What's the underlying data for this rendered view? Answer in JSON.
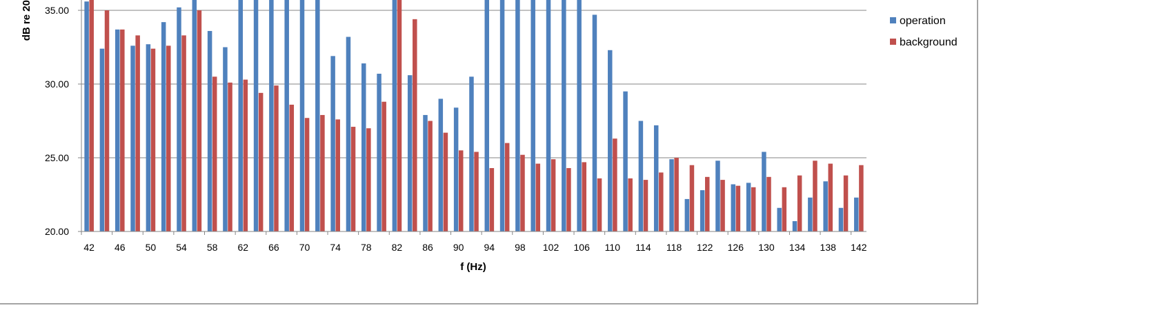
{
  "chart_data": {
    "type": "bar",
    "title": "",
    "xlabel": "f (Hz)",
    "ylabel": "dB re 20",
    "ylim": [
      20,
      35
    ],
    "y_ticks": [
      "20.00",
      "25.00",
      "30.00",
      "35.00"
    ],
    "grid": true,
    "legend_position": "right",
    "categories": [
      42,
      44,
      46,
      48,
      50,
      52,
      54,
      56,
      58,
      60,
      62,
      64,
      66,
      68,
      70,
      72,
      74,
      76,
      78,
      80,
      82,
      84,
      86,
      88,
      90,
      92,
      94,
      96,
      98,
      100,
      102,
      104,
      106,
      108,
      110,
      112,
      114,
      116,
      118,
      120,
      122,
      124,
      126,
      128,
      130,
      132,
      134,
      136,
      138,
      140,
      142
    ],
    "tick_labels": [
      "42",
      "46",
      "50",
      "54",
      "58",
      "62",
      "66",
      "70",
      "74",
      "78",
      "82",
      "86",
      "90",
      "94",
      "98",
      "102",
      "106",
      "110",
      "114",
      "118",
      "122",
      "126",
      "130",
      "134",
      "138",
      "142"
    ],
    "series": [
      {
        "name": "operation",
        "color": "#4F81BD",
        "values": [
          35.6,
          32.4,
          33.7,
          32.6,
          32.7,
          34.2,
          35.2,
          36.5,
          33.6,
          32.5,
          36.5,
          36.5,
          36.5,
          36.5,
          36.5,
          36.5,
          31.9,
          33.2,
          31.4,
          30.7,
          36.5,
          30.6,
          27.9,
          29.0,
          28.4,
          30.5,
          36.5,
          36.5,
          36.5,
          36.5,
          36.5,
          36.5,
          36.5,
          34.7,
          32.3,
          29.5,
          27.5,
          27.2,
          24.9,
          22.2,
          22.8,
          24.8,
          23.2,
          23.3,
          25.4,
          21.6,
          20.7,
          22.3,
          23.4,
          21.6,
          22.3
        ]
      },
      {
        "name": "background",
        "color": "#C0504D",
        "values": [
          36.5,
          35.0,
          33.7,
          33.3,
          32.4,
          32.6,
          33.3,
          35.0,
          30.5,
          30.1,
          30.3,
          29.4,
          29.9,
          28.6,
          27.7,
          27.9,
          27.6,
          27.1,
          27.0,
          28.8,
          36.5,
          34.4,
          27.5,
          26.7,
          25.5,
          25.4,
          24.3,
          26.0,
          25.2,
          24.6,
          24.9,
          24.3,
          24.7,
          23.6,
          26.3,
          23.6,
          23.5,
          24.0,
          25.0,
          24.5,
          23.7,
          23.5,
          23.1,
          23.0,
          23.7,
          23.0,
          23.8,
          24.8,
          24.6,
          23.8,
          24.5
        ]
      }
    ]
  }
}
